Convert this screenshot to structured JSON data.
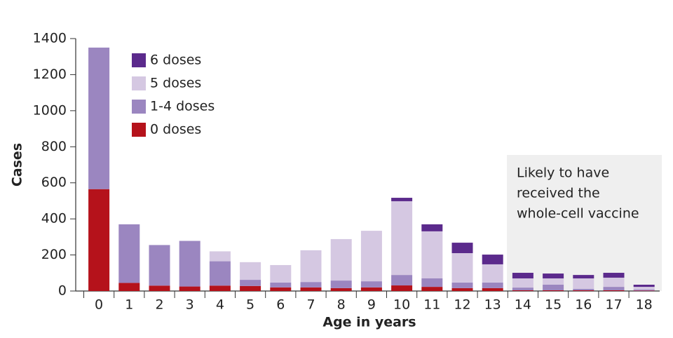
{
  "chart_data": {
    "type": "stacked_bar",
    "x_label": "Age in years",
    "y_label": "Cases",
    "categories": [
      "0",
      "1",
      "2",
      "3",
      "4",
      "5",
      "6",
      "7",
      "8",
      "9",
      "10",
      "11",
      "12",
      "13",
      "14",
      "15",
      "16",
      "17",
      "18"
    ],
    "series": [
      {
        "name": "0 doses",
        "color": "#b5121b",
        "values": [
          565,
          45,
          30,
          25,
          30,
          28,
          20,
          20,
          16,
          20,
          31,
          23,
          16,
          16,
          4,
          4,
          4,
          4,
          2
        ]
      },
      {
        "name": "1-4 doses",
        "color": "#9b86c0",
        "values": [
          785,
          325,
          225,
          253,
          135,
          34,
          27,
          30,
          42,
          34,
          58,
          47,
          31,
          31,
          15,
          31,
          8,
          19,
          6
        ]
      },
      {
        "name": "5 doses",
        "color": "#d5c8e2",
        "values": [
          0,
          0,
          0,
          0,
          55,
          98,
          97,
          176,
          230,
          280,
          409,
          261,
          163,
          101,
          51,
          35,
          58,
          51,
          15
        ]
      },
      {
        "name": "6 doses",
        "color": "#5b2a8c",
        "values": [
          0,
          0,
          0,
          0,
          0,
          0,
          0,
          0,
          0,
          0,
          19,
          39,
          58,
          54,
          31,
          27,
          19,
          27,
          12
        ]
      }
    ],
    "ylim": [
      0,
      1400
    ],
    "yticks": [
      0,
      200,
      400,
      600,
      800,
      1000,
      1200,
      1400
    ],
    "annotation": [
      "Likely to have",
      "received the",
      "whole-cell vaccine"
    ]
  }
}
